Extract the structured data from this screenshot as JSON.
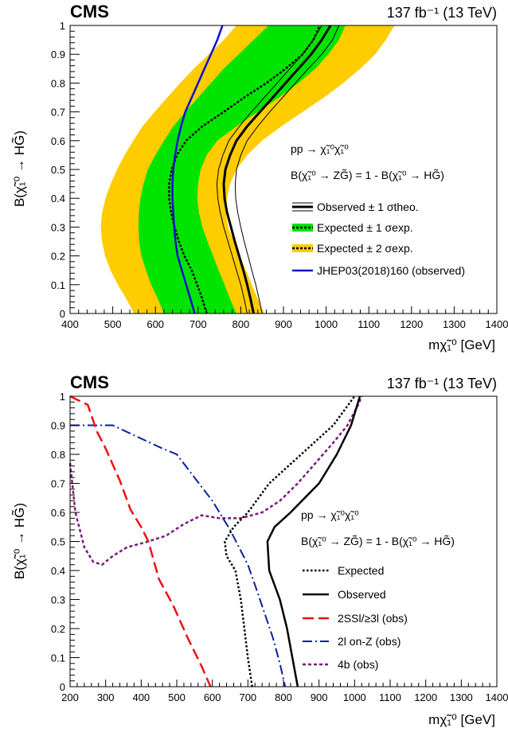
{
  "chart_data": [
    {
      "type": "line",
      "cms_label": "CMS",
      "lumi_label": "137 fb⁻¹ (13 TeV)",
      "xlabel": "mχ̃₁⁰ [GeV]",
      "ylabel": "B(χ̃₁⁰ → HG̃)",
      "xlim": [
        400,
        1400
      ],
      "ylim": [
        0,
        1
      ],
      "xticks": [
        400,
        500,
        600,
        700,
        800,
        900,
        1000,
        1100,
        1200,
        1300,
        1400
      ],
      "yticks": [
        0,
        0.1,
        0.2,
        0.3,
        0.4,
        0.5,
        0.6,
        0.7,
        0.8,
        0.9,
        1
      ],
      "process_text": "pp → χ̃₁⁰χ̃₁⁰",
      "br_text": "B(χ̃₁⁰ → ZG̃) = 1 - B(χ̃₁⁰ → HG̃)",
      "legend": [
        "Observed ± 1 σtheo.",
        "Expected ± 1 σexp.",
        "Expected ± 2 σexp.",
        "JHEP03(2018)160 (observed)"
      ],
      "colors": {
        "observed": "#000000",
        "expected": "#000000",
        "band_1sigma": "#00e400",
        "band_2sigma": "#ffcc00",
        "jhep": "#1010d0"
      },
      "y": [
        0,
        0.05,
        0.1,
        0.15,
        0.2,
        0.25,
        0.3,
        0.35,
        0.4,
        0.45,
        0.5,
        0.55,
        0.6,
        0.65,
        0.7,
        0.75,
        0.8,
        0.85,
        0.9,
        0.95,
        1.0
      ],
      "series": [
        {
          "name": "Observed",
          "x": [
            830,
            823,
            815,
            806,
            796,
            786,
            777,
            768,
            762,
            760,
            764,
            775,
            790,
            815,
            845,
            875,
            905,
            935,
            965,
            990,
            1010
          ]
        },
        {
          "name": "Observed",
          "x": [
            850,
            843,
            835,
            826,
            817,
            808,
            800,
            793,
            788,
            787,
            790,
            800,
            815,
            840,
            868,
            898,
            928,
            958,
            990,
            1015,
            1030
          ]
        },
        {
          "name": "Observed",
          "x": [
            815,
            808,
            800,
            790,
            780,
            770,
            760,
            752,
            746,
            744,
            748,
            758,
            772,
            797,
            825,
            855,
            885,
            915,
            945,
            970,
            990
          ]
        },
        {
          "name": "Expected",
          "x": [
            720,
            710,
            698,
            685,
            668,
            655,
            645,
            637,
            632,
            632,
            638,
            650,
            672,
            710,
            760,
            808,
            860,
            905,
            945,
            970,
            985
          ]
        },
        {
          "name": "Expected ± 1 σexp.",
          "x": [
            620,
            606,
            590,
            578,
            567,
            562,
            560,
            561,
            565,
            572,
            582,
            600,
            620,
            642,
            670,
            700,
            730,
            760,
            795,
            830,
            865
          ]
        },
        {
          "name": "Expected ± 1 σexp.",
          "x": [
            790,
            775,
            762,
            748,
            735,
            722,
            710,
            702,
            698,
            700,
            706,
            720,
            745,
            790,
            840,
            890,
            935,
            975,
            1005,
            1030,
            1045
          ]
        },
        {
          "name": "Expected ± 2 σexp.",
          "x": [
            550,
            532,
            512,
            495,
            482,
            475,
            472,
            475,
            483,
            495,
            510,
            528,
            548,
            570,
            598,
            628,
            658,
            690,
            725,
            760,
            790
          ]
        },
        {
          "name": "Expected ± 2 σexp.",
          "x": [
            855,
            840,
            826,
            812,
            798,
            784,
            770,
            765,
            768,
            775,
            790,
            815,
            850,
            895,
            945,
            995,
            1040,
            1080,
            1115,
            1140,
            1160
          ]
        },
        {
          "name": "JHEP03(2018)160 (observed)",
          "x": [
            692,
            682,
            672,
            662,
            652,
            647,
            644,
            642,
            640,
            640,
            642,
            646,
            652,
            660,
            670,
            685,
            700,
            715,
            730,
            745,
            757
          ]
        }
      ]
    },
    {
      "type": "line",
      "cms_label": "CMS",
      "lumi_label": "137 fb⁻¹ (13 TeV)",
      "xlabel": "mχ̃₁⁰ [GeV]",
      "ylabel": "B(χ̃₁⁰ → HG̃)",
      "xlim": [
        200,
        1400
      ],
      "ylim": [
        0,
        1
      ],
      "xticks": [
        200,
        300,
        400,
        500,
        600,
        700,
        800,
        900,
        1000,
        1100,
        1200,
        1300,
        1400
      ],
      "yticks": [
        0,
        0.1,
        0.2,
        0.3,
        0.4,
        0.5,
        0.6,
        0.7,
        0.8,
        0.9,
        1
      ],
      "process_text": "pp → χ̃₁⁰χ̃₁⁰",
      "br_text": "B(χ̃₁⁰ → ZG̃) = 1 - B(χ̃₁⁰ → HG̃)",
      "legend": [
        "Expected",
        "Observed",
        "2SSl/≥3l (obs)",
        "2l on-Z (obs)",
        "4b (obs)"
      ],
      "colors": {
        "expected": "#000000",
        "observed": "#000000",
        "ssl": "#ee1111",
        "onz": "#0a1e9e",
        "fourb": "#7a1a7a"
      },
      "series": [
        {
          "name": "Expected",
          "points": [
            [
              712,
              0
            ],
            [
              700,
              0.1
            ],
            [
              690,
              0.2
            ],
            [
              680,
              0.3
            ],
            [
              665,
              0.4
            ],
            [
              640,
              0.45
            ],
            [
              635,
              0.5
            ],
            [
              660,
              0.55
            ],
            [
              700,
              0.6
            ],
            [
              760,
              0.7
            ],
            [
              850,
              0.8
            ],
            [
              940,
              0.9
            ],
            [
              1000,
              1.0
            ]
          ]
        },
        {
          "name": "Observed",
          "points": [
            [
              840,
              0
            ],
            [
              825,
              0.1
            ],
            [
              810,
              0.2
            ],
            [
              790,
              0.3
            ],
            [
              760,
              0.4
            ],
            [
              755,
              0.5
            ],
            [
              775,
              0.55
            ],
            [
              820,
              0.6
            ],
            [
              900,
              0.7
            ],
            [
              950,
              0.8
            ],
            [
              990,
              0.9
            ],
            [
              1015,
              1.0
            ]
          ]
        },
        {
          "name": "2SSl/≥3l (obs)",
          "points": [
            [
              200,
              1.0
            ],
            [
              250,
              0.97
            ],
            [
              275,
              0.88
            ],
            [
              300,
              0.82
            ],
            [
              340,
              0.71
            ],
            [
              370,
              0.61
            ],
            [
              400,
              0.55
            ],
            [
              420,
              0.5
            ],
            [
              450,
              0.37
            ],
            [
              490,
              0.28
            ],
            [
              530,
              0.17
            ],
            [
              570,
              0.07
            ],
            [
              595,
              0
            ]
          ]
        },
        {
          "name": "2l on-Z (obs)",
          "points": [
            [
              200,
              0.9
            ],
            [
              320,
              0.9
            ],
            [
              390,
              0.86
            ],
            [
              460,
              0.82
            ],
            [
              500,
              0.8
            ],
            [
              550,
              0.72
            ],
            [
              600,
              0.64
            ],
            [
              650,
              0.54
            ],
            [
              700,
              0.42
            ],
            [
              720,
              0.35
            ],
            [
              745,
              0.26
            ],
            [
              770,
              0.17
            ],
            [
              790,
              0.08
            ],
            [
              805,
              0
            ]
          ]
        },
        {
          "name": "4b (obs)",
          "points": [
            [
              200,
              0.77
            ],
            [
              215,
              0.6
            ],
            [
              240,
              0.48
            ],
            [
              265,
              0.43
            ],
            [
              290,
              0.42
            ],
            [
              320,
              0.45
            ],
            [
              360,
              0.48
            ],
            [
              420,
              0.5
            ],
            [
              470,
              0.52
            ],
            [
              520,
              0.56
            ],
            [
              570,
              0.59
            ],
            [
              620,
              0.58
            ],
            [
              680,
              0.58
            ],
            [
              740,
              0.6
            ],
            [
              790,
              0.64
            ],
            [
              840,
              0.7
            ],
            [
              890,
              0.77
            ],
            [
              940,
              0.84
            ],
            [
              980,
              0.9
            ],
            [
              1010,
              0.97
            ],
            [
              1020,
              1.0
            ]
          ]
        }
      ]
    }
  ]
}
